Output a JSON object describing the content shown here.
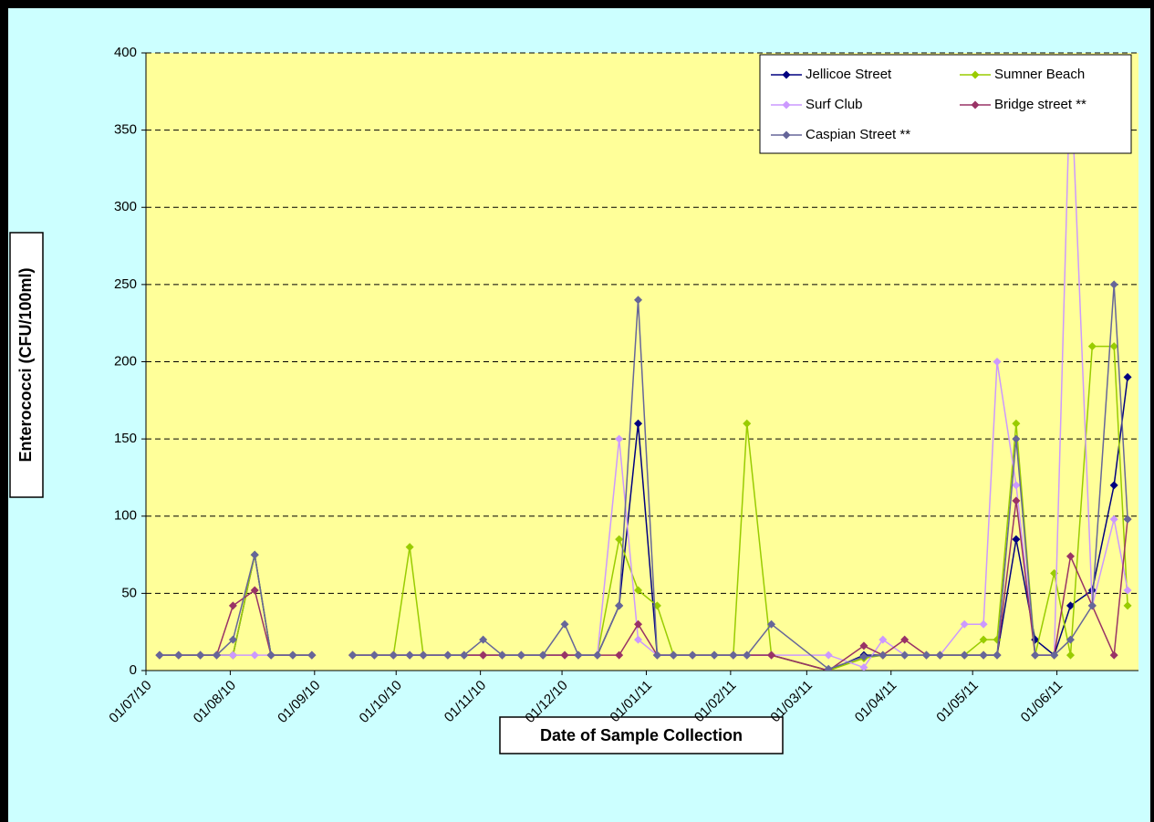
{
  "chart_data": {
    "type": "line",
    "xlabel": "Date of Sample Collection",
    "ylabel": "Enterococci (CFU/100ml)",
    "x": [
      "2010-07-06",
      "2010-07-13",
      "2010-07-21",
      "2010-07-27",
      "2010-08-02",
      "2010-08-10",
      "2010-08-16",
      "2010-08-24",
      "2010-08-31",
      "2010-09-08",
      "2010-09-15",
      "2010-09-23",
      "2010-09-30",
      "2010-10-06",
      "2010-10-11",
      "2010-10-20",
      "2010-10-26",
      "2010-11-02",
      "2010-11-09",
      "2010-11-16",
      "2010-11-24",
      "2010-12-02",
      "2010-12-07",
      "2010-12-14",
      "2010-12-22",
      "2010-12-29",
      "2011-01-05",
      "2011-01-11",
      "2011-01-18",
      "2011-01-26",
      "2011-02-02",
      "2011-02-07",
      "2011-02-16",
      "2011-03-09",
      "2011-03-22",
      "2011-03-29",
      "2011-04-06",
      "2011-04-14",
      "2011-04-19",
      "2011-04-28",
      "2011-05-05",
      "2011-05-10",
      "2011-05-17",
      "2011-05-24",
      "2011-05-31",
      "2011-06-06",
      "2011-06-14",
      "2011-06-22",
      "2011-06-27"
    ],
    "series": [
      {
        "name": "Jellicoe Street",
        "color": "#000080",
        "values": [
          10,
          10,
          10,
          10,
          10,
          75,
          10,
          10,
          10,
          null,
          10,
          10,
          10,
          10,
          10,
          10,
          10,
          10,
          10,
          10,
          10,
          10,
          10,
          10,
          42,
          160,
          10,
          10,
          10,
          10,
          10,
          10,
          10,
          0,
          10,
          10,
          10,
          10,
          10,
          10,
          10,
          10,
          85,
          20,
          10,
          42,
          52,
          120,
          190
        ]
      },
      {
        "name": "Sumner Beach",
        "color": "#99cc00",
        "values": [
          10,
          10,
          10,
          10,
          10,
          75,
          10,
          10,
          10,
          null,
          10,
          10,
          10,
          80,
          10,
          10,
          10,
          10,
          10,
          10,
          10,
          10,
          10,
          10,
          85,
          52,
          42,
          10,
          10,
          10,
          10,
          160,
          10,
          0,
          8,
          10,
          10,
          10,
          10,
          10,
          20,
          20,
          160,
          10,
          63,
          10,
          210,
          210,
          42
        ]
      },
      {
        "name": "Surf Club",
        "color": "#cc99ff",
        "values": [
          10,
          10,
          10,
          10,
          10,
          10,
          10,
          10,
          10,
          null,
          10,
          10,
          10,
          10,
          10,
          10,
          10,
          10,
          10,
          10,
          10,
          10,
          10,
          10,
          150,
          20,
          10,
          10,
          10,
          10,
          10,
          10,
          10,
          10,
          2,
          20,
          10,
          10,
          10,
          30,
          30,
          200,
          120,
          10,
          10,
          390,
          42,
          98,
          52
        ]
      },
      {
        "name": "Bridge street **",
        "color": "#993366",
        "values": [
          10,
          10,
          10,
          10,
          42,
          52,
          10,
          10,
          10,
          null,
          10,
          10,
          10,
          10,
          10,
          10,
          10,
          10,
          10,
          10,
          10,
          10,
          10,
          10,
          10,
          30,
          10,
          10,
          10,
          10,
          10,
          10,
          10,
          0,
          16,
          10,
          20,
          10,
          10,
          10,
          10,
          10,
          110,
          10,
          10,
          74,
          42,
          10,
          98
        ]
      },
      {
        "name": "Caspian Street **",
        "color": "#666699",
        "values": [
          10,
          10,
          10,
          10,
          20,
          75,
          10,
          10,
          10,
          null,
          10,
          10,
          10,
          10,
          10,
          10,
          10,
          20,
          10,
          10,
          10,
          30,
          10,
          10,
          42,
          240,
          10,
          10,
          10,
          10,
          10,
          10,
          30,
          1,
          9,
          10,
          10,
          10,
          10,
          10,
          10,
          10,
          150,
          10,
          10,
          20,
          42,
          250,
          98
        ]
      }
    ],
    "xlim": [
      "2010-07-01",
      "2011-07-01"
    ],
    "xticks": [
      {
        "value": "2010-07-01",
        "label": "01/07/10"
      },
      {
        "value": "2010-08-01",
        "label": "01/08/10"
      },
      {
        "value": "2010-09-01",
        "label": "01/09/10"
      },
      {
        "value": "2010-10-01",
        "label": "01/10/10"
      },
      {
        "value": "2010-11-01",
        "label": "01/11/10"
      },
      {
        "value": "2010-12-01",
        "label": "01/12/10"
      },
      {
        "value": "2011-01-01",
        "label": "01/01/11"
      },
      {
        "value": "2011-02-01",
        "label": "01/02/11"
      },
      {
        "value": "2011-03-01",
        "label": "01/03/11"
      },
      {
        "value": "2011-04-01",
        "label": "01/04/11"
      },
      {
        "value": "2011-05-01",
        "label": "01/05/11"
      },
      {
        "value": "2011-06-01",
        "label": "01/06/11"
      }
    ],
    "ylim": [
      0,
      400
    ],
    "yticks": [
      0,
      50,
      100,
      150,
      200,
      250,
      300,
      350,
      400
    ],
    "grid": true,
    "legend": "top-right"
  }
}
